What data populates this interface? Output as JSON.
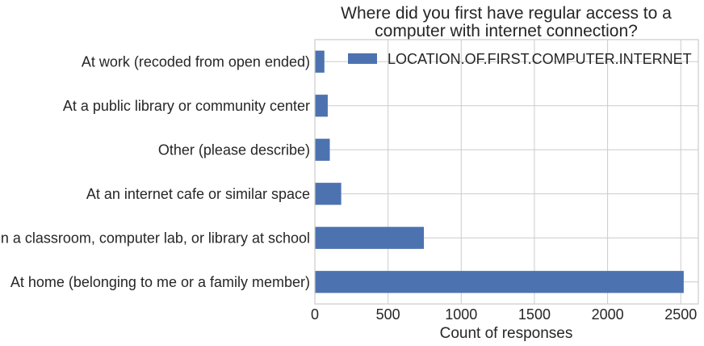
{
  "chart_data": {
    "type": "bar",
    "orientation": "horizontal",
    "title": [
      "Where did you first have regular access to a",
      "computer with internet connection?"
    ],
    "xlabel": "Count of responses",
    "ylabel": "",
    "categories": [
      "At home (belonging to me or a family member)",
      "In a classroom, computer lab, or library at school",
      "At an internet cafe or similar space",
      "Other (please describe)",
      "At a public library or community center",
      "At work (recoded from open ended)"
    ],
    "series": [
      {
        "name": "LOCATION.OF.FIRST.COMPUTER.INTERNET",
        "values": [
          2520,
          745,
          180,
          102,
          88,
          65
        ],
        "color": "#4c72b0"
      }
    ],
    "xlim": [
      0,
      2620
    ],
    "xticks": [
      0,
      500,
      1000,
      1500,
      2000,
      2500
    ],
    "xtick_labels": [
      "0",
      "500",
      "1000",
      "1500",
      "2000",
      "2500"
    ],
    "grid": true,
    "legend_position": "upper-right"
  }
}
